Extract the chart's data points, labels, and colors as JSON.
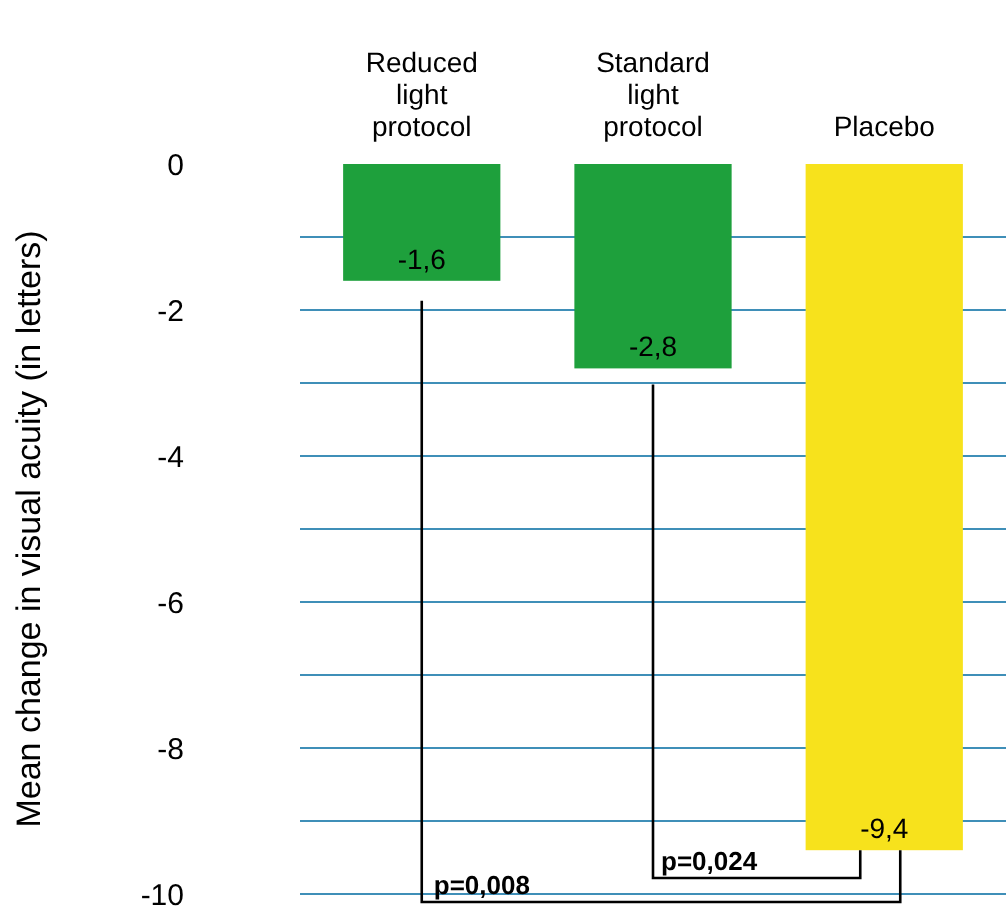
{
  "chart_data": {
    "type": "bar",
    "ylabel": "Mean change in visual acuity (in letters)",
    "categories": [
      "Reduced light protocol",
      "Standard light protocol",
      "Placebo"
    ],
    "values": [
      -1.6,
      -2.8,
      -9.4
    ],
    "colors": [
      "#1ea03c",
      "#1ea03c",
      "#f7e21c"
    ],
    "value_labels": [
      "-1,6",
      "-2,8",
      "-9,4"
    ],
    "ylim": [
      -10,
      0
    ],
    "yticks": [
      0,
      {
        "value": -1,
        "label": null
      },
      -2,
      {
        "value": -3,
        "label": null
      },
      -4,
      {
        "value": -5,
        "label": null
      },
      -6,
      {
        "value": -7,
        "label": null
      },
      -8,
      {
        "value": -9,
        "label": null
      },
      -10
    ],
    "grid": "y",
    "annotations": [
      "p=0,008",
      "p=0,024"
    ]
  }
}
